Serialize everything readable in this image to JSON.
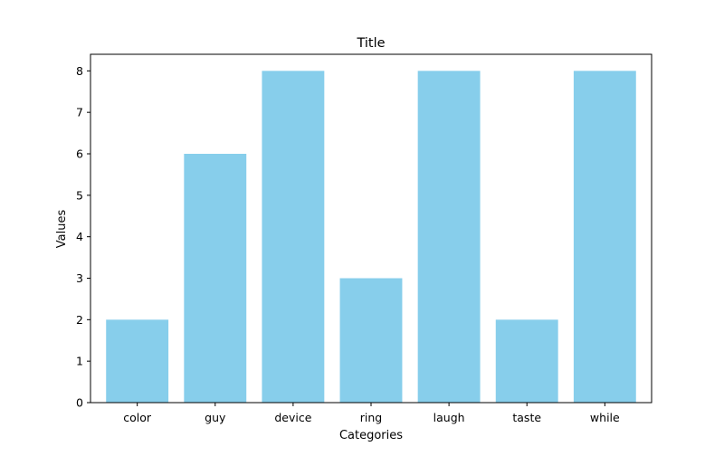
{
  "chart_data": {
    "type": "bar",
    "title": "Title",
    "xlabel": "Categories",
    "ylabel": "Values",
    "categories": [
      "color",
      "guy",
      "device",
      "ring",
      "laugh",
      "taste",
      "while"
    ],
    "values": [
      2,
      6,
      8,
      3,
      8,
      2,
      8
    ],
    "ylim": [
      0,
      8.4
    ],
    "yticks": [
      0,
      1,
      2,
      3,
      4,
      5,
      6,
      7,
      8
    ],
    "grid": false,
    "bar_color": "#87CEEB",
    "axis_color": "#000000"
  }
}
